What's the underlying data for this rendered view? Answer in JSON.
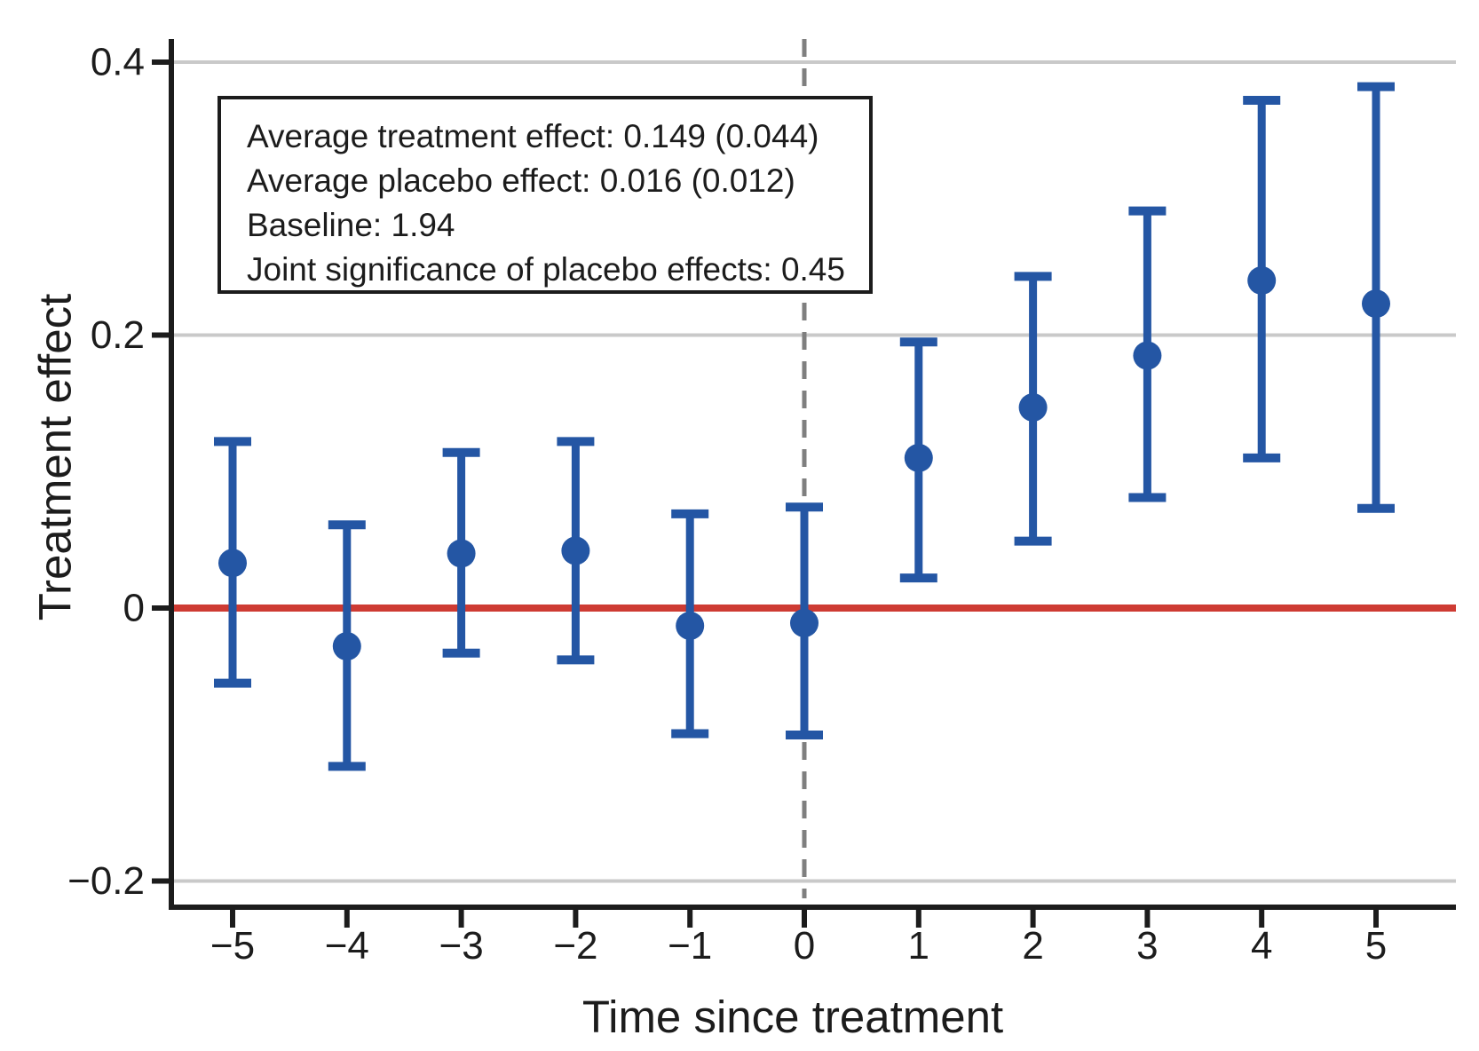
{
  "chart_data": {
    "type": "scatter",
    "title": "",
    "xlabel": "Time since treatment",
    "ylabel": "Treatment effect",
    "x": [
      -5,
      -4,
      -3,
      -2,
      -1,
      0,
      1,
      2,
      3,
      4,
      5
    ],
    "x_tick_labels": [
      "−5",
      "−4",
      "−3",
      "−2",
      "−1",
      "0",
      "1",
      "2",
      "3",
      "4",
      "5"
    ],
    "y_ticks": [
      {
        "value": 0.4,
        "label": "0.4"
      },
      {
        "value": 0.2,
        "label": "0.2"
      },
      {
        "value": 0,
        "label": "0"
      },
      {
        "value": -0.2,
        "label": "−0.2"
      }
    ],
    "xlim": [
      -5.6,
      5.7
    ],
    "ylim": [
      -0.22,
      0.418
    ],
    "grid": "horizontal-gridlines-at-nonzero-ticks",
    "legend": "none",
    "series": [
      {
        "name": "treatment-effect-point-estimates",
        "marker": "filled-circle-with-error-bars",
        "values": [
          0.033,
          -0.028,
          0.04,
          0.042,
          -0.013,
          -0.011,
          0.11,
          0.147,
          0.185,
          0.24,
          0.223
        ],
        "ci_low": [
          -0.055,
          -0.116,
          -0.033,
          -0.038,
          -0.092,
          -0.093,
          0.022,
          0.049,
          0.081,
          0.11,
          0.073
        ],
        "ci_high": [
          0.122,
          0.061,
          0.114,
          0.122,
          0.069,
          0.074,
          0.195,
          0.243,
          0.291,
          0.372,
          0.382
        ]
      }
    ],
    "reference_lines": {
      "horizontal_solid_y": 0,
      "vertical_dashed_x": 0
    },
    "annotation_box": {
      "lines": [
        "Average treatment effect: 0.149 (0.044)",
        "Average placebo effect: 0.016 (0.012)",
        "Baseline: 1.94",
        "Joint significance of placebo effects: 0.45"
      ]
    }
  },
  "colors": {
    "point_blue": "#2456A4",
    "zero_line_red": "#CE3B33",
    "gridline_gray": "#C9C9C9",
    "dashed_gray": "#7F7F7F",
    "axis_black": "#1C1C1C"
  }
}
